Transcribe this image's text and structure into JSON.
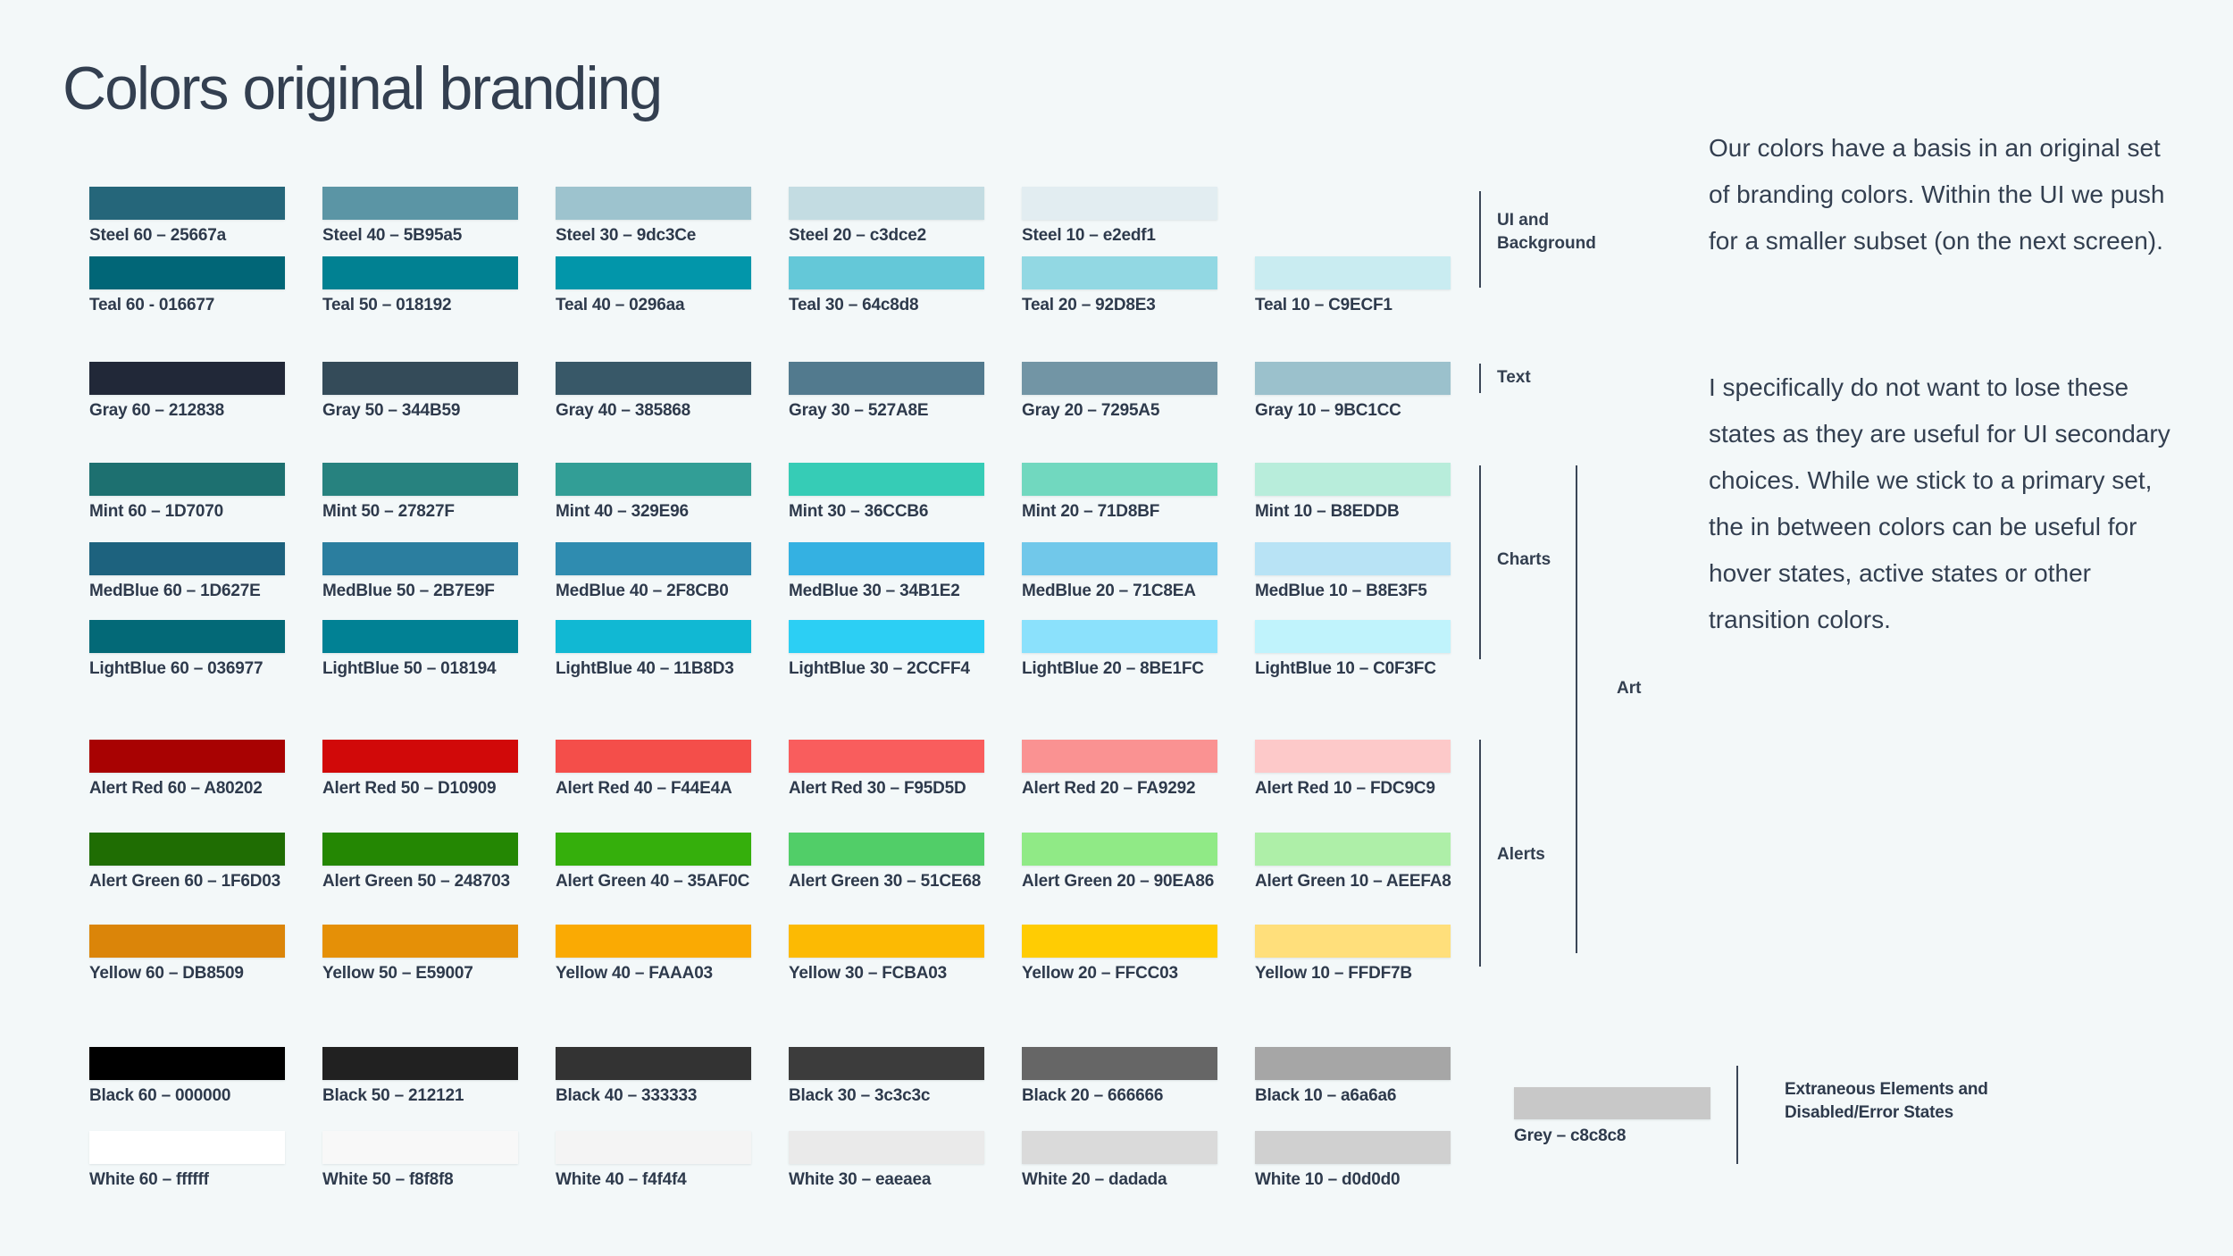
{
  "title": "Colors original branding",
  "colors": {
    "background": "#f3f8f9",
    "text": "#333f50",
    "line": "#3a4657"
  },
  "rows": [
    {
      "name": "steel",
      "swatches": [
        {
          "label": "Steel 60 – 25667a",
          "hex": "#25667a"
        },
        {
          "label": "Steel 40 – 5B95a5",
          "hex": "#5B95a5"
        },
        {
          "label": "Steel 30 – 9dc3Ce",
          "hex": "#9dc3Ce"
        },
        {
          "label": "Steel 20 – c3dce2",
          "hex": "#c3dce2"
        },
        {
          "label": "Steel 10 – e2edf1",
          "hex": "#e2edf1"
        }
      ]
    },
    {
      "name": "teal",
      "swatches": [
        {
          "label": "Teal 60 - 016677",
          "hex": "#016677"
        },
        {
          "label": "Teal 50 – 018192",
          "hex": "#018192"
        },
        {
          "label": "Teal 40 – 0296aa",
          "hex": "#0296aa"
        },
        {
          "label": "Teal 30 – 64c8d8",
          "hex": "#64c8d8"
        },
        {
          "label": "Teal 20 – 92D8E3",
          "hex": "#92D8E3"
        },
        {
          "label": "Teal 10 – C9ECF1",
          "hex": "#C9ECF1"
        }
      ]
    },
    {
      "name": "gray",
      "swatches": [
        {
          "label": "Gray 60 – 212838",
          "hex": "#212838"
        },
        {
          "label": "Gray 50 – 344B59",
          "hex": "#344B59"
        },
        {
          "label": "Gray 40 – 385868",
          "hex": "#385868"
        },
        {
          "label": "Gray 30 – 527A8E",
          "hex": "#527A8E"
        },
        {
          "label": "Gray 20 – 7295A5",
          "hex": "#7295A5"
        },
        {
          "label": "Gray 10 – 9BC1CC",
          "hex": "#9BC1CC"
        }
      ]
    },
    {
      "name": "mint",
      "swatches": [
        {
          "label": "Mint 60 – 1D7070",
          "hex": "#1D7070"
        },
        {
          "label": "Mint 50 – 27827F",
          "hex": "#27827F"
        },
        {
          "label": "Mint 40 – 329E96",
          "hex": "#329E96"
        },
        {
          "label": "Mint 30 – 36CCB6",
          "hex": "#36CCB6"
        },
        {
          "label": "Mint 20 – 71D8BF",
          "hex": "#71D8BF"
        },
        {
          "label": "Mint 10 – B8EDDB",
          "hex": "#B8EDDB"
        }
      ]
    },
    {
      "name": "medblue",
      "swatches": [
        {
          "label": "MedBlue 60 – 1D627E",
          "hex": "#1D627E"
        },
        {
          "label": "MedBlue 50 – 2B7E9F",
          "hex": "#2B7E9F"
        },
        {
          "label": "MedBlue 40 – 2F8CB0",
          "hex": "#2F8CB0"
        },
        {
          "label": "MedBlue 30 – 34B1E2",
          "hex": "#34B1E2"
        },
        {
          "label": "MedBlue 20 – 71C8EA",
          "hex": "#71C8EA"
        },
        {
          "label": "MedBlue 10 – B8E3F5",
          "hex": "#B8E3F5"
        }
      ]
    },
    {
      "name": "lightblue",
      "swatches": [
        {
          "label": "LightBlue 60 – 036977",
          "hex": "#036977"
        },
        {
          "label": "LightBlue 50 – 018194",
          "hex": "#018194"
        },
        {
          "label": "LightBlue 40 – 11B8D3",
          "hex": "#11B8D3"
        },
        {
          "label": "LightBlue 30 – 2CCFF4",
          "hex": "#2CCFF4"
        },
        {
          "label": "LightBlue 20 – 8BE1FC",
          "hex": "#8BE1FC"
        },
        {
          "label": "LightBlue 10 – C0F3FC",
          "hex": "#C0F3FC"
        }
      ]
    },
    {
      "name": "alert-red",
      "swatches": [
        {
          "label": "Alert Red 60 – A80202",
          "hex": "#A80202"
        },
        {
          "label": "Alert Red 50 – D10909",
          "hex": "#D10909"
        },
        {
          "label": "Alert Red 40 – F44E4A",
          "hex": "#F44E4A"
        },
        {
          "label": "Alert Red 30 – F95D5D",
          "hex": "#F95D5D"
        },
        {
          "label": "Alert Red 20 – FA9292",
          "hex": "#FA9292"
        },
        {
          "label": "Alert Red 10 – FDC9C9",
          "hex": "#FDC9C9"
        }
      ]
    },
    {
      "name": "alert-green",
      "swatches": [
        {
          "label": "Alert Green 60 – 1F6D03",
          "hex": "#1F6D03"
        },
        {
          "label": "Alert Green 50 – 248703",
          "hex": "#248703"
        },
        {
          "label": "Alert Green 40 – 35AF0C",
          "hex": "#35AF0C"
        },
        {
          "label": "Alert Green 30 – 51CE68",
          "hex": "#51CE68"
        },
        {
          "label": "Alert Green 20 – 90EA86",
          "hex": "#90EA86"
        },
        {
          "label": "Alert Green 10 – AEEFA8",
          "hex": "#AEEFA8"
        }
      ]
    },
    {
      "name": "yellow",
      "swatches": [
        {
          "label": "Yellow 60 – DB8509",
          "hex": "#DB8509"
        },
        {
          "label": "Yellow 50 – E59007",
          "hex": "#E59007"
        },
        {
          "label": "Yellow 40 – FAAA03",
          "hex": "#FAAA03"
        },
        {
          "label": "Yellow 30 – FCBA03",
          "hex": "#FCBA03"
        },
        {
          "label": "Yellow 20 – FFCC03",
          "hex": "#FFCC03"
        },
        {
          "label": "Yellow 10 – FFDF7B",
          "hex": "#FFDF7B"
        }
      ]
    },
    {
      "name": "black",
      "swatches": [
        {
          "label": "Black 60 – 000000",
          "hex": "#000000"
        },
        {
          "label": "Black 50 – 212121",
          "hex": "#212121"
        },
        {
          "label": "Black 40 – 333333",
          "hex": "#333333"
        },
        {
          "label": "Black 30 – 3c3c3c",
          "hex": "#3c3c3c"
        },
        {
          "label": "Black 20 – 666666",
          "hex": "#666666"
        },
        {
          "label": "Black 10 – a6a6a6",
          "hex": "#a6a6a6"
        }
      ]
    },
    {
      "name": "white",
      "swatches": [
        {
          "label": "White 60 – ffffff",
          "hex": "#ffffff"
        },
        {
          "label": "White 50 – f8f8f8",
          "hex": "#f8f8f8"
        },
        {
          "label": "White 40 – f4f4f4",
          "hex": "#f4f4f4"
        },
        {
          "label": "White 30 – eaeaea",
          "hex": "#eaeaea"
        },
        {
          "label": "White 20 – dadada",
          "hex": "#dadada"
        },
        {
          "label": "White 10 – d0d0d0",
          "hex": "#d0d0d0"
        }
      ]
    }
  ],
  "groups": [
    {
      "label": "UI and Background"
    },
    {
      "label": "Text"
    },
    {
      "label": "Charts"
    },
    {
      "label": "Art"
    },
    {
      "label": "Alerts"
    }
  ],
  "sidebar_text": {
    "paragraph1": "Our colors have a basis in an original set of branding colors. Within the UI we push for a smaller subset (on the next screen).",
    "paragraph2": "I specifically do not want to lose these states as they are useful for UI secondary choices. While we stick to a primary set, the in between colors can be useful for hover states, active states or other transition colors."
  },
  "extra": {
    "grey_label": "Grey – c8c8c8",
    "grey_hex": "#c8c8c8",
    "note_line1": "Extraneous Elements and",
    "note_line2": "Disabled/Error States"
  }
}
